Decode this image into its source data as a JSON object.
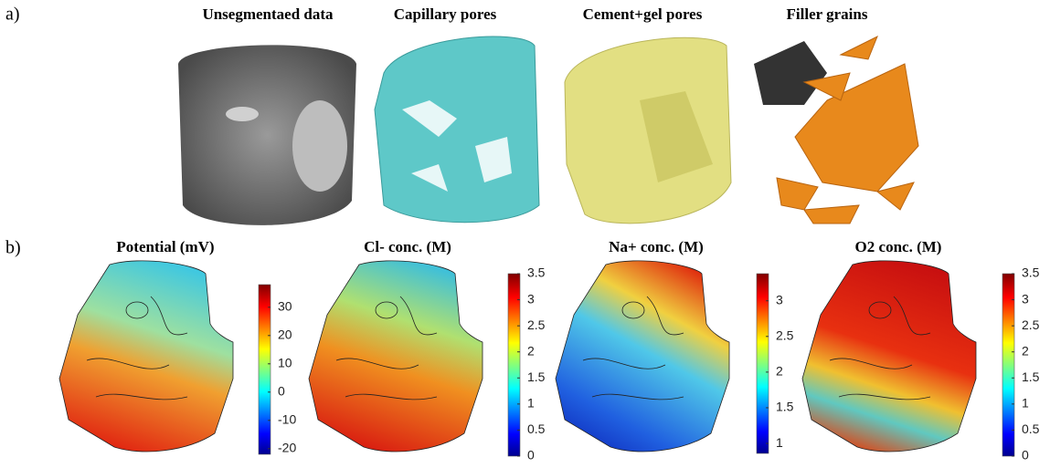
{
  "panel_a": {
    "label": "a)",
    "titles": [
      "Unsegmentaed data",
      "Capillary pores",
      "Cement+gel pores",
      "Filler grains"
    ]
  },
  "panel_b": {
    "label": "b)",
    "plots": [
      {
        "title": "Potential (mV)",
        "colorbar": {
          "lim": [
            -22,
            38
          ],
          "ticks": [
            -20,
            -10,
            0,
            10,
            20,
            30
          ]
        }
      },
      {
        "title": "Cl- conc. (M)",
        "colorbar": {
          "lim": [
            0,
            3.5
          ],
          "ticks": [
            0,
            0.5,
            1,
            1.5,
            2,
            2.5,
            3,
            3.5
          ]
        }
      },
      {
        "title": "Na+ conc. (M)",
        "colorbar": {
          "lim": [
            0.86,
            3.38
          ],
          "ticks": [
            1,
            1.5,
            2,
            2.5,
            3
          ]
        }
      },
      {
        "title": "O2 conc. (M)",
        "colorbar": {
          "lim": [
            0,
            3.5
          ],
          "ticks": [
            0,
            0.5,
            1,
            1.5,
            2,
            2.5,
            3,
            3.5
          ]
        }
      }
    ]
  }
}
